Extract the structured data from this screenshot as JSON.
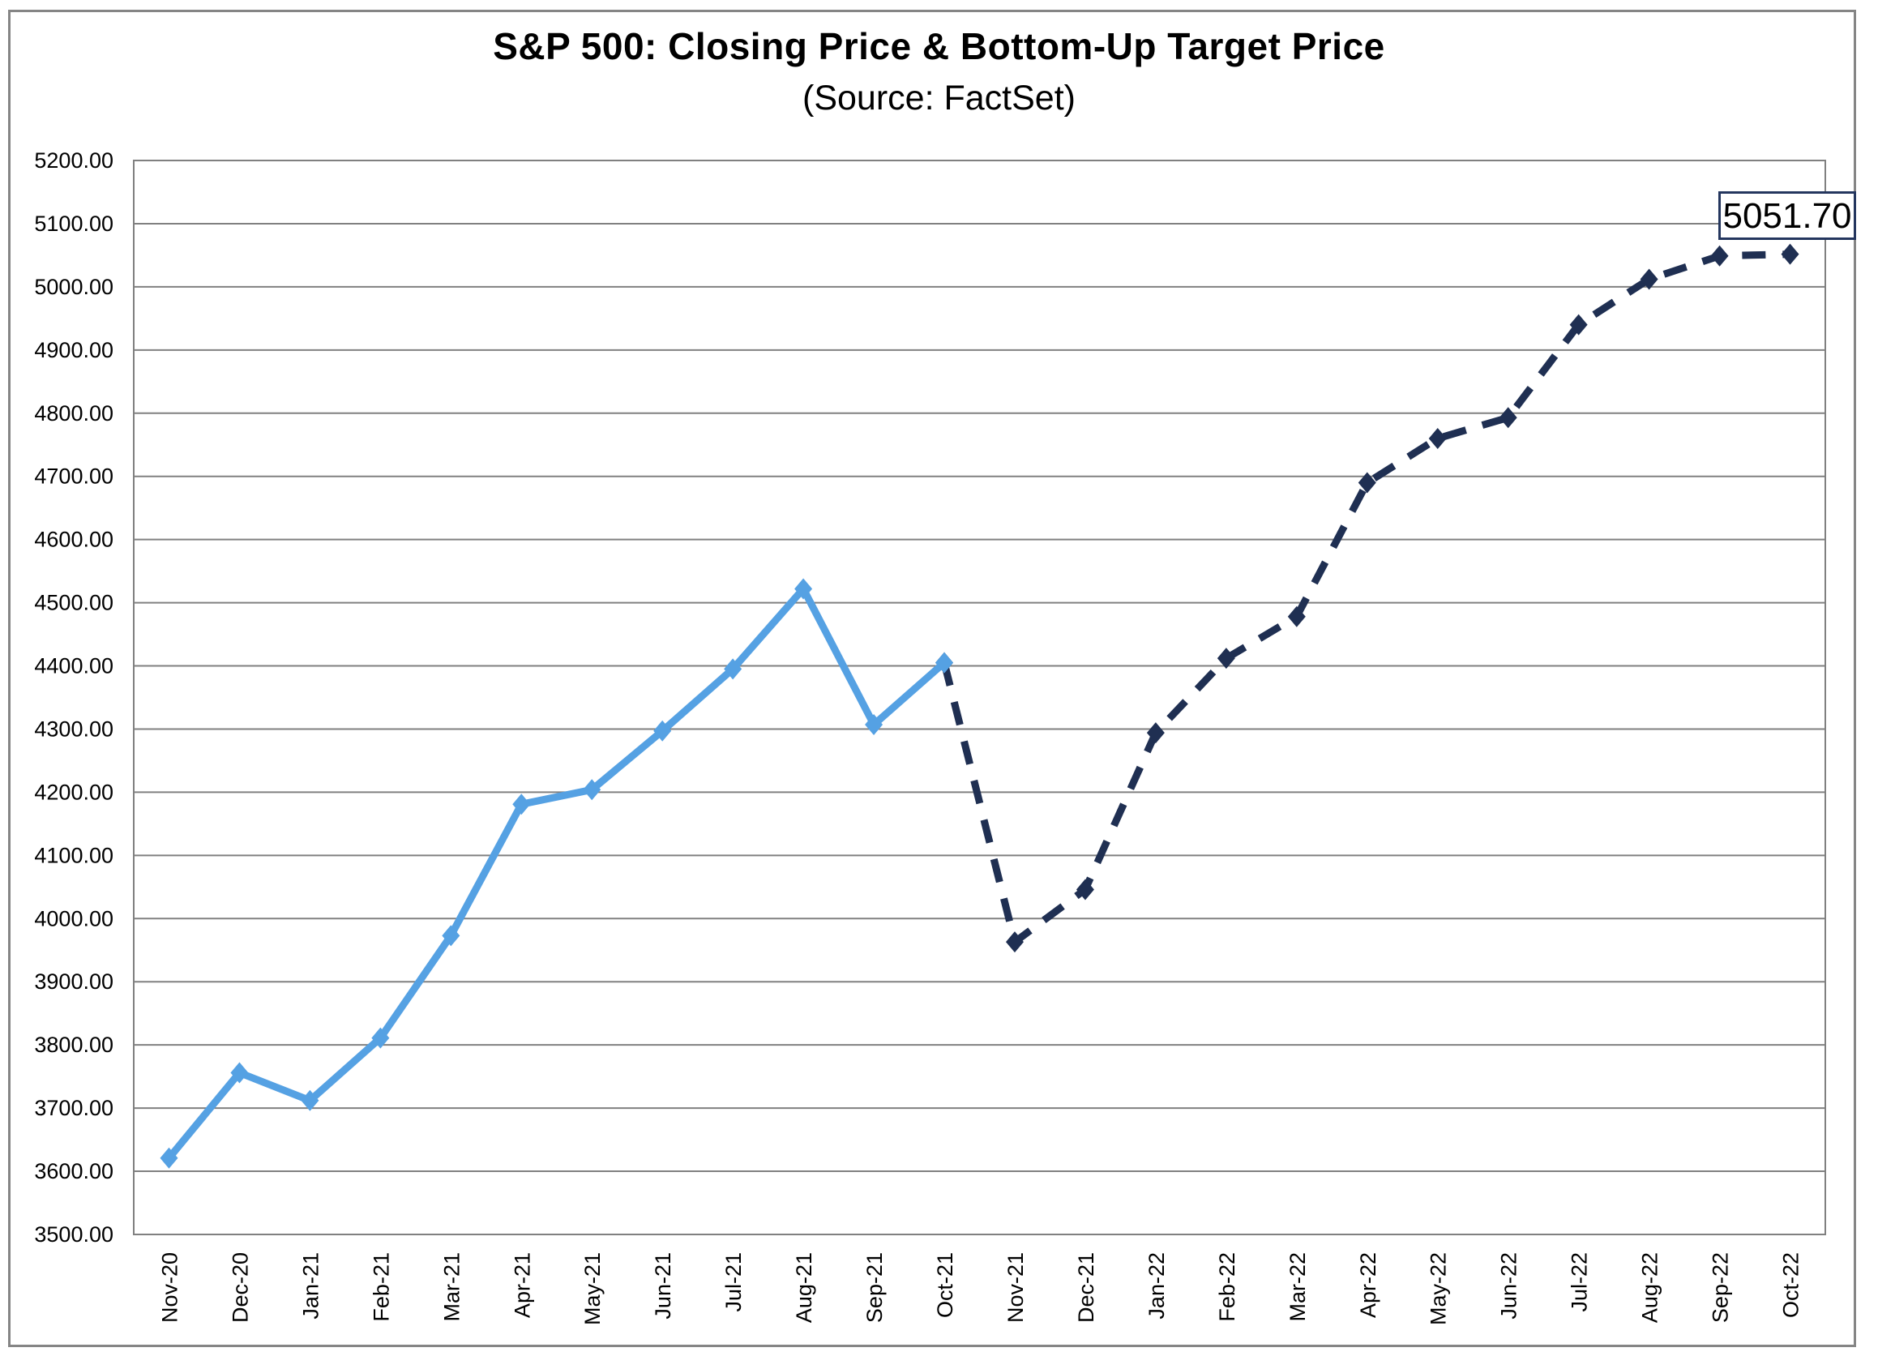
{
  "header": {
    "title": "S&P 500: Closing Price & Bottom-Up Target Price",
    "subtitle": "(Source: FactSet)"
  },
  "chart_data": {
    "type": "line",
    "title": "S&P 500: Closing Price & Bottom-Up Target Price",
    "subtitle": "(Source: FactSet)",
    "categories": [
      "Nov-20",
      "Dec-20",
      "Jan-21",
      "Feb-21",
      "Mar-21",
      "Apr-21",
      "May-21",
      "Jun-21",
      "Jul-21",
      "Aug-21",
      "Sep-21",
      "Oct-21",
      "Nov-21",
      "Dec-21",
      "Jan-22",
      "Feb-22",
      "Mar-22",
      "Apr-22",
      "May-22",
      "Jun-22",
      "Jul-22",
      "Aug-22",
      "Sep-22",
      "Oct-22"
    ],
    "series": [
      {
        "name": "Closing Price",
        "style": "solid",
        "color": "#55A1E3",
        "marker": "diamond",
        "values": [
          3621,
          3756,
          3712,
          3811,
          3973,
          4181,
          4204,
          4297,
          4395,
          4522,
          4307,
          4405,
          null,
          null,
          null,
          null,
          null,
          null,
          null,
          null,
          null,
          null,
          null,
          null
        ]
      },
      {
        "name": "Bottom-Up Target Price",
        "style": "dashed",
        "color": "#1F2F52",
        "marker": "diamond",
        "values": [
          null,
          null,
          null,
          null,
          null,
          null,
          null,
          null,
          null,
          null,
          null,
          4405,
          3963,
          4046,
          4294,
          4412,
          4478,
          4690,
          4760,
          4793,
          4940,
          5012,
          5049,
          5051.7
        ]
      }
    ],
    "ylim": [
      3500,
      5200
    ],
    "ytick_step": 100,
    "ytick_format": "0.00",
    "grid": "horizontal",
    "gridline_color": "#808080",
    "axis_text_color": "#000000",
    "legend": "none",
    "annotation": {
      "text": "5051.70",
      "target_category": "Oct-22",
      "border_color": "#24365E"
    }
  }
}
